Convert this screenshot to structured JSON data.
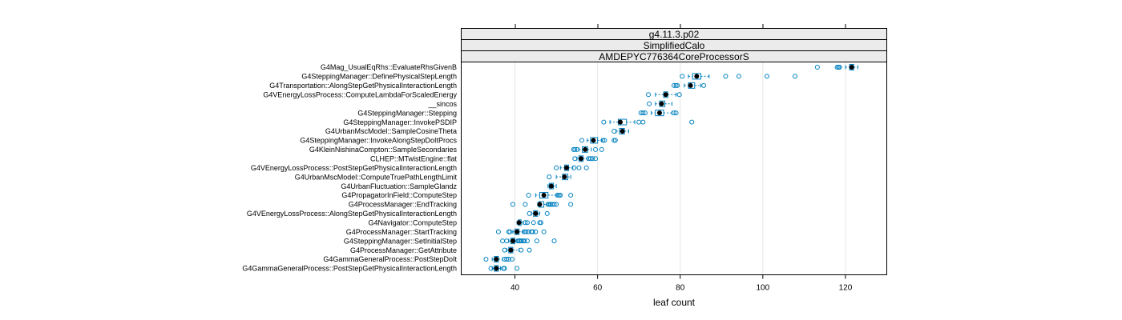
{
  "chart_data": {
    "type": "box",
    "strips": [
      "g4.11.3.p02",
      "SimplifiedCalo",
      "AMDEPYC776364CoreProcessorS"
    ],
    "xlabel": "leaf count",
    "xlim": [
      27,
      130
    ],
    "xticks": [
      40,
      60,
      80,
      100,
      120
    ],
    "grid": "vertical",
    "colors": {
      "box": "#0080bf",
      "median": "#000000",
      "strip": "#ebebeb"
    },
    "categories": [
      "G4Mag_UsualEqRhs::EvaluateRhsGivenB",
      "G4SteppingManager::DefinePhysicalStepLength",
      "G4Transportation::AlongStepGetPhysicalInteractionLength",
      "G4VEnergyLossProcess::ComputeLambdaForScaledEnergy",
      "__sincos",
      "G4SteppingManager::Stepping",
      "G4SteppingManager::InvokePSDIP",
      "G4UrbanMscModel::SampleCosineTheta",
      "G4SteppingManager::InvokeAlongStepDoItProcs",
      "G4KleinNishinaCompton::SampleSecondaries",
      "CLHEP::MTwistEngine::flat",
      "G4VEnergyLossProcess::PostStepGetPhysicalInteractionLength",
      "G4UrbanMscModel::ComputeTruePathLengthLimit",
      "G4UrbanFluctuation::SampleGlandz",
      "G4PropagatorInField::ComputeStep",
      "G4ProcessManager::EndTracking",
      "G4VEnergyLossProcess::AlongStepGetPhysicalInteractionLength",
      "G4Navigator::ComputeStep",
      "G4ProcessManager::StartTracking",
      "G4SteppingManager::SetInitialStep",
      "G4ProcessManager::GetAttribute",
      "G4GammaGeneralProcess::PostStepDoIt",
      "G4GammaGeneralProcess::PostStepGetPhysicalInteractionLength"
    ],
    "boxes": [
      {
        "median": 121.5,
        "q1": 121,
        "q3": 122,
        "wlo": 120,
        "whi": 123,
        "outliers": [
          113.2,
          118,
          118.3,
          118.6
        ]
      },
      {
        "median": 84,
        "q1": 83,
        "q3": 85,
        "wlo": 82,
        "whi": 87,
        "outliers": [
          80.5,
          91,
          94.2,
          101,
          107.8
        ]
      },
      {
        "median": 82.5,
        "q1": 82,
        "q3": 83.5,
        "wlo": 81,
        "whi": 85,
        "outliers": [
          78.5,
          79,
          79.3,
          85.7
        ]
      },
      {
        "median": 76.5,
        "q1": 76,
        "q3": 77,
        "wlo": 74,
        "whi": 79,
        "outliers": [
          72.3,
          79.8
        ]
      },
      {
        "median": 75.5,
        "q1": 75,
        "q3": 76.3,
        "wlo": 74,
        "whi": 78,
        "outliers": [
          72.5
        ]
      },
      {
        "median": 75,
        "q1": 74,
        "q3": 76,
        "wlo": 73,
        "whi": 78,
        "outliers": [
          70.5,
          71,
          71.5,
          78.5,
          79
        ]
      },
      {
        "median": 65.5,
        "q1": 65,
        "q3": 67,
        "wlo": 63,
        "whi": 69,
        "outliers": [
          61.5,
          70,
          71,
          82.8
        ]
      },
      {
        "median": 66,
        "q1": 65.3,
        "q3": 66.5,
        "wlo": 64.5,
        "whi": 67.5,
        "outliers": [
          64
        ]
      },
      {
        "median": 59,
        "q1": 58.3,
        "q3": 60,
        "wlo": 57.5,
        "whi": 61,
        "outliers": [
          56.2,
          61.3,
          61.7,
          64,
          64.3
        ]
      },
      {
        "median": 57,
        "q1": 56.3,
        "q3": 57.6,
        "wlo": 55.5,
        "whi": 58.5,
        "outliers": [
          54.2,
          54.5,
          55,
          59.5,
          61
        ]
      },
      {
        "median": 56,
        "q1": 55.5,
        "q3": 56.5,
        "wlo": 55,
        "whi": 57.5,
        "outliers": [
          54.5,
          57.8,
          58.3,
          58.8,
          59.5
        ]
      },
      {
        "median": 52.5,
        "q1": 52,
        "q3": 53,
        "wlo": 51,
        "whi": 54,
        "outliers": [
          50,
          54.3,
          55.5,
          57.3
        ]
      },
      {
        "median": 52,
        "q1": 51.5,
        "q3": 52.8,
        "wlo": 50,
        "whi": 53.5,
        "outliers": [
          48.3
        ]
      },
      {
        "median": 48.8,
        "q1": 48.3,
        "q3": 49.3,
        "wlo": 48,
        "whi": 50,
        "outliers": []
      },
      {
        "median": 47,
        "q1": 46,
        "q3": 48,
        "wlo": 45,
        "whi": 50,
        "outliers": [
          43.3,
          50.3,
          50.7,
          51,
          53.5
        ]
      },
      {
        "median": 46,
        "q1": 45.8,
        "q3": 47,
        "wlo": 45.5,
        "whi": 47.8,
        "outliers": [
          39.5,
          42.5,
          48,
          48.3,
          48.6,
          49,
          49.5,
          50,
          53.5
        ]
      },
      {
        "median": 45,
        "q1": 44.5,
        "q3": 45.5,
        "wlo": 44,
        "whi": 46,
        "outliers": [
          43.5,
          47.8
        ]
      },
      {
        "median": 41,
        "q1": 40.8,
        "q3": 41.5,
        "wlo": 40.5,
        "whi": 42,
        "outliers": [
          42.5,
          43,
          44.5,
          46,
          46.3
        ]
      },
      {
        "median": 40.5,
        "q1": 40,
        "q3": 41,
        "wlo": 39.5,
        "whi": 42,
        "outliers": [
          36,
          38.5,
          38.8,
          42.2,
          42.7,
          43.3,
          44,
          44.3,
          45,
          47
        ]
      },
      {
        "median": 39.5,
        "q1": 39,
        "q3": 40,
        "wlo": 38.5,
        "whi": 40.5,
        "outliers": [
          37,
          38,
          40.7,
          41,
          41.3,
          41.6,
          42,
          42.3,
          43,
          45.3,
          49.5
        ]
      },
      {
        "median": 39,
        "q1": 38.5,
        "q3": 39.5,
        "wlo": 38,
        "whi": 41,
        "outliers": [
          37.5,
          41.5,
          43.5
        ]
      },
      {
        "median": 35.5,
        "q1": 35,
        "q3": 36,
        "wlo": 34.5,
        "whi": 37,
        "outliers": [
          33,
          37.5,
          38,
          38.5,
          39.3
        ]
      },
      {
        "median": 35.5,
        "q1": 35,
        "q3": 36,
        "wlo": 34.5,
        "whi": 36.5,
        "outliers": [
          34.2,
          37.2,
          37.5,
          40.5
        ]
      }
    ]
  }
}
